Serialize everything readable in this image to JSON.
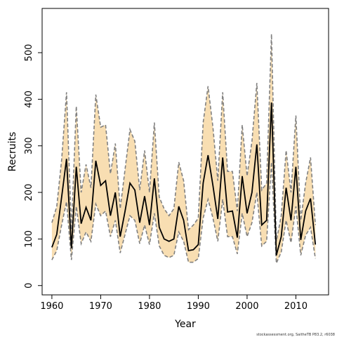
{
  "chart_data": {
    "type": "line",
    "title": "",
    "xlabel": "Year",
    "ylabel": "Recruits",
    "xlim": [
      1958,
      2016.7
    ],
    "ylim": [
      -20,
      595
    ],
    "xticks": [
      1960,
      1970,
      1980,
      1990,
      2000,
      2010
    ],
    "yticks": [
      0,
      100,
      200,
      300,
      400,
      500
    ],
    "grid": false,
    "legend": "none",
    "footnote": "stockassessment.org, SaitheTB P83.2, r6038",
    "colors": {
      "band_fill": "#f8deb2",
      "bound_line": "#808080",
      "estimate_line": "#000000"
    },
    "x": [
      1960,
      1961,
      1962,
      1963,
      1964,
      1965,
      1966,
      1967,
      1968,
      1969,
      1970,
      1971,
      1972,
      1973,
      1974,
      1975,
      1976,
      1977,
      1978,
      1979,
      1980,
      1981,
      1982,
      1983,
      1984,
      1985,
      1986,
      1987,
      1988,
      1989,
      1990,
      1991,
      1992,
      1993,
      1994,
      1995,
      1996,
      1997,
      1998,
      1999,
      2000,
      2001,
      2002,
      2003,
      2004,
      2005,
      2006,
      2007,
      2008,
      2009,
      2010,
      2011,
      2012,
      2013,
      2014
    ],
    "series": [
      {
        "role": "estimate",
        "values": [
          82,
          110,
          190,
          272,
          80,
          255,
          133,
          168,
          140,
          268,
          215,
          225,
          150,
          200,
          105,
          160,
          220,
          205,
          135,
          192,
          130,
          230,
          125,
          100,
          95,
          100,
          170,
          140,
          75,
          77,
          88,
          220,
          280,
          215,
          143,
          275,
          158,
          160,
          103,
          235,
          155,
          200,
          303,
          130,
          140,
          393,
          65,
          105,
          210,
          140,
          255,
          98,
          160,
          187,
          88
        ]
      },
      {
        "role": "upper",
        "values": [
          135,
          170,
          270,
          415,
          120,
          385,
          200,
          260,
          210,
          410,
          340,
          345,
          240,
          305,
          165,
          250,
          335,
          310,
          205,
          290,
          200,
          350,
          190,
          165,
          150,
          165,
          265,
          225,
          120,
          130,
          145,
          350,
          428,
          340,
          225,
          415,
          245,
          245,
          160,
          345,
          235,
          310,
          435,
          205,
          220,
          540,
          95,
          150,
          290,
          200,
          365,
          140,
          220,
          275,
          130
        ]
      },
      {
        "role": "lower",
        "values": [
          55,
          75,
          130,
          180,
          55,
          170,
          90,
          115,
          95,
          175,
          150,
          160,
          105,
          140,
          70,
          110,
          150,
          140,
          90,
          130,
          88,
          155,
          85,
          65,
          60,
          65,
          115,
          95,
          50,
          50,
          58,
          145,
          185,
          145,
          95,
          185,
          105,
          105,
          68,
          155,
          105,
          135,
          200,
          85,
          95,
          265,
          48,
          72,
          140,
          92,
          170,
          65,
          108,
          125,
          58
        ]
      }
    ]
  }
}
